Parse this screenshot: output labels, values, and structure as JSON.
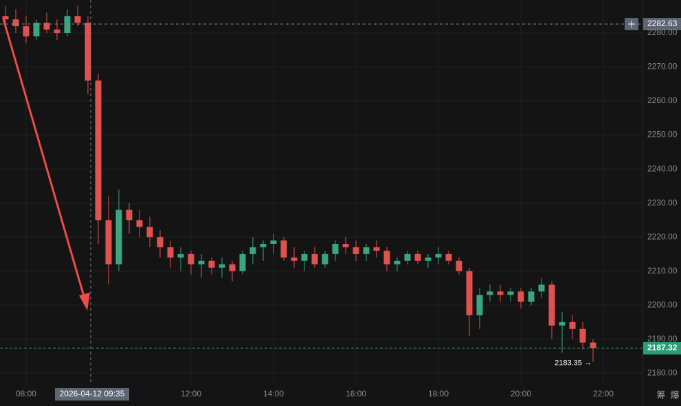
{
  "chart_data": {
    "type": "candlestick",
    "x": [
      7.5,
      7.75,
      8,
      8.25,
      8.5,
      8.75,
      9,
      9.25,
      9.5,
      9.75,
      10,
      10.25,
      10.5,
      10.75,
      11,
      11.25,
      11.5,
      11.75,
      12,
      12.25,
      12.5,
      12.75,
      13,
      13.25,
      13.5,
      13.75,
      14,
      14.25,
      14.5,
      14.75,
      15,
      15.25,
      15.5,
      15.75,
      16,
      16.25,
      16.5,
      16.75,
      17,
      17.25,
      17.5,
      17.75,
      18,
      18.25,
      18.5,
      18.75,
      19,
      19.25,
      19.5,
      19.75,
      20,
      20.25,
      20.5,
      20.75,
      21,
      21.25,
      21.5,
      21.75
    ],
    "open": [
      2285,
      2284,
      2282,
      2279,
      2283,
      2281,
      2280,
      2285,
      2283,
      2266,
      2225,
      2212,
      2228,
      2225,
      2223,
      2220,
      2217,
      2214,
      2215,
      2212,
      2213,
      2211,
      2212,
      2210,
      2215,
      2217,
      2218,
      2219,
      2214,
      2213,
      2215,
      2212,
      2215,
      2218,
      2217,
      2215,
      2217,
      2216,
      2212,
      2213,
      2215,
      2213,
      2214,
      2215,
      2213,
      2210,
      2197,
      2203,
      2204,
      2203,
      2204,
      2201,
      2204,
      2206,
      2194,
      2195,
      2193,
      2189
    ],
    "high": [
      2288,
      2287,
      2285,
      2284,
      2286,
      2284,
      2287,
      2288,
      2285,
      2268,
      2232,
      2234,
      2230,
      2228,
      2226,
      2222,
      2219,
      2217,
      2216,
      2215,
      2214,
      2214,
      2213,
      2216,
      2220,
      2219,
      2221,
      2220,
      2217,
      2216,
      2217,
      2216,
      2219,
      2220,
      2219,
      2218,
      2219,
      2217,
      2214,
      2216,
      2216,
      2215,
      2217,
      2216,
      2214,
      2211,
      2205,
      2206,
      2206,
      2205,
      2205,
      2205,
      2208,
      2207,
      2198,
      2197,
      2195,
      2190
    ],
    "low": [
      2281,
      2280,
      2277,
      2278,
      2280,
      2278,
      2279,
      2282,
      2262,
      2218,
      2206,
      2210,
      2221,
      2220,
      2217,
      2214,
      2211,
      2210,
      2209,
      2208,
      2209,
      2208,
      2207,
      2209,
      2212,
      2213,
      2215,
      2213,
      2211,
      2210,
      2211,
      2211,
      2213,
      2215,
      2213,
      2213,
      2214,
      2210,
      2210,
      2212,
      2212,
      2211,
      2212,
      2212,
      2209,
      2191,
      2193,
      2201,
      2201,
      2201,
      2199,
      2200,
      2202,
      2190,
      2186,
      2190,
      2187,
      2183.35
    ],
    "close": [
      2284,
      2282,
      2279,
      2283,
      2281,
      2280,
      2285,
      2283,
      2266,
      2225,
      2212,
      2228,
      2225,
      2223,
      2220,
      2217,
      2214,
      2215,
      2212,
      2213,
      2211,
      2212,
      2210,
      2215,
      2217,
      2218,
      2219,
      2214,
      2213,
      2215,
      2212,
      2215,
      2218,
      2217,
      2215,
      2217,
      2216,
      2212,
      2213,
      2215,
      2213,
      2214,
      2215,
      2213,
      2210,
      2197,
      2203,
      2204,
      2203,
      2204,
      2201,
      2204,
      2206,
      2194,
      2195,
      2193,
      2189,
      2187.32
    ],
    "up_color": "#3aa57e",
    "down_color": "#e0524f",
    "xlim": [
      7.367,
      22.95
    ],
    "ylim": [
      2176.6,
      2289.7
    ],
    "xticks": [
      {
        "value": 8,
        "label": "08:00"
      },
      {
        "value": 12,
        "label": "12:00"
      },
      {
        "value": 14,
        "label": "14:00"
      },
      {
        "value": 16,
        "label": "16:00"
      },
      {
        "value": 18,
        "label": "18:00"
      },
      {
        "value": 20,
        "label": "20:00"
      },
      {
        "value": 22,
        "label": "22:00"
      }
    ],
    "yticks": [
      {
        "value": 2180,
        "label": "2180.00"
      },
      {
        "value": 2190,
        "label": "2190.00"
      },
      {
        "value": 2200,
        "label": "2200.00"
      },
      {
        "value": 2210,
        "label": "2210.00"
      },
      {
        "value": 2220,
        "label": "2220.00"
      },
      {
        "value": 2230,
        "label": "2230.00"
      },
      {
        "value": 2240,
        "label": "2240.00"
      },
      {
        "value": 2250,
        "label": "2250.00"
      },
      {
        "value": 2260,
        "label": "2260.00"
      },
      {
        "value": 2270,
        "label": "2270.00"
      },
      {
        "value": 2280,
        "label": "2280.00"
      }
    ],
    "grid": true,
    "crosshair": {
      "x": 9.567,
      "x_label": "2026-04-12 09:35",
      "y": 2282.63,
      "color": "#5d6472"
    },
    "last_price": {
      "value": 2187.32,
      "color": "#2a9d74"
    },
    "low_marker": {
      "value": 2183.35,
      "label": "2183.35 →"
    }
  },
  "toolbar": [
    "筹",
    "爆"
  ]
}
